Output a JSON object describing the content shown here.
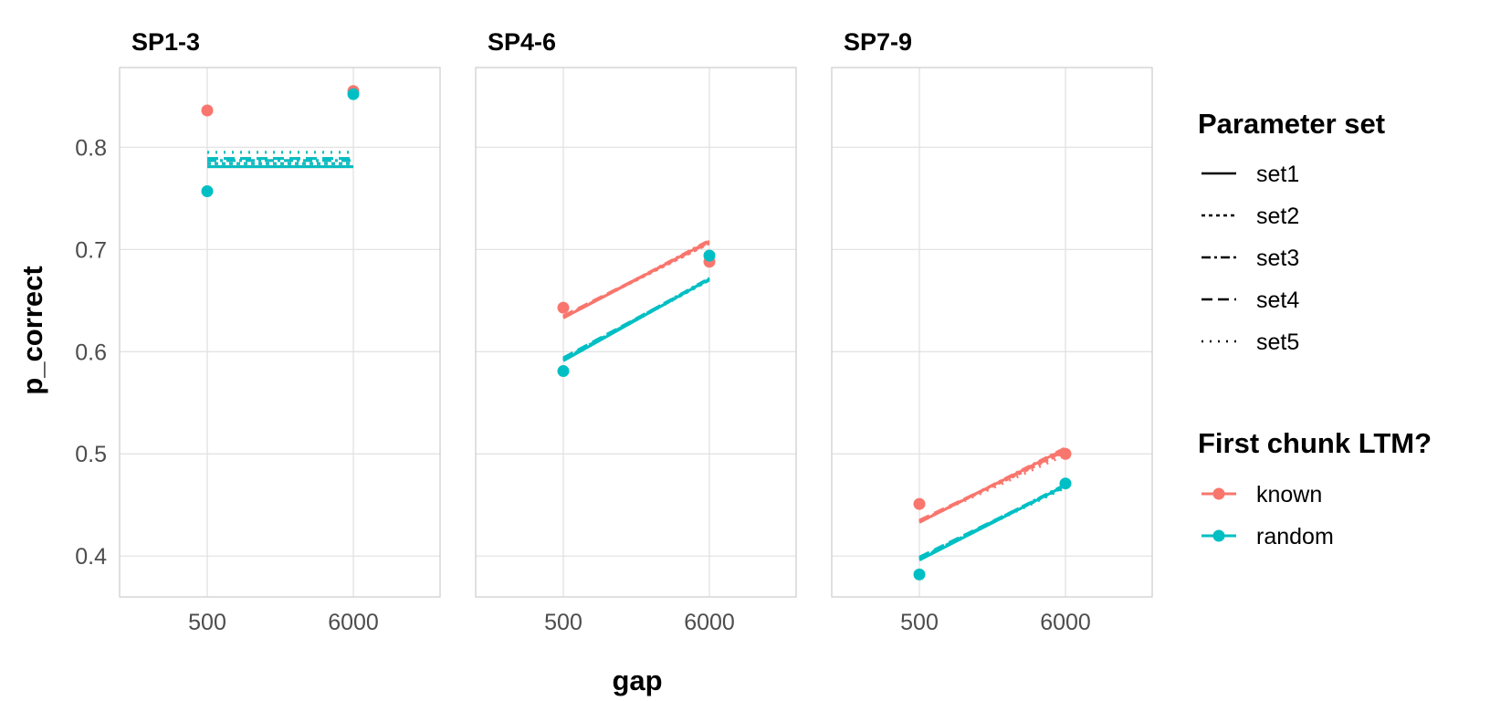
{
  "chart_data": {
    "type": "line",
    "xlabel": "gap",
    "ylabel": "p_correct",
    "x_categories": [
      "500",
      "6000"
    ],
    "ylim": [
      0.36,
      0.878
    ],
    "yticks": [
      0.4,
      0.5,
      0.6,
      0.7,
      0.8
    ],
    "ytick_labels": [
      "0.4",
      "0.5",
      "0.6",
      "0.7",
      "0.8"
    ],
    "grid": true,
    "legend_position": "right",
    "linetype_legend": {
      "title": "Parameter set",
      "items": [
        {
          "name": "set1",
          "dash": "solid"
        },
        {
          "name": "set2",
          "dash": "dotted-short"
        },
        {
          "name": "set3",
          "dash": "dashdot"
        },
        {
          "name": "set4",
          "dash": "dashed"
        },
        {
          "name": "set5",
          "dash": "dotted"
        }
      ]
    },
    "color_legend": {
      "title": "First chunk LTM?",
      "items": [
        {
          "name": "known",
          "color": "#F8766D"
        },
        {
          "name": "random",
          "color": "#00BFC4"
        }
      ]
    },
    "panels": [
      {
        "title": "SP1-3",
        "points": [
          {
            "group": "known",
            "values": [
              0.836,
              0.855
            ]
          },
          {
            "group": "random",
            "values": [
              0.757,
              0.852
            ]
          }
        ],
        "lines": [
          {
            "group": "known",
            "set": "set1",
            "values": [
              0.781,
              0.781
            ]
          },
          {
            "group": "known",
            "set": "set2",
            "values": [
              0.784,
              0.784
            ]
          },
          {
            "group": "known",
            "set": "set3",
            "values": [
              0.787,
              0.787
            ]
          },
          {
            "group": "known",
            "set": "set4",
            "values": [
              0.789,
              0.789
            ]
          },
          {
            "group": "known",
            "set": "set5",
            "values": [
              0.795,
              0.795
            ]
          },
          {
            "group": "random",
            "set": "set1",
            "values": [
              0.781,
              0.781
            ]
          },
          {
            "group": "random",
            "set": "set2",
            "values": [
              0.784,
              0.784
            ]
          },
          {
            "group": "random",
            "set": "set3",
            "values": [
              0.787,
              0.787
            ]
          },
          {
            "group": "random",
            "set": "set4",
            "values": [
              0.789,
              0.789
            ]
          },
          {
            "group": "random",
            "set": "set5",
            "values": [
              0.795,
              0.795
            ]
          }
        ]
      },
      {
        "title": "SP4-6",
        "points": [
          {
            "group": "known",
            "values": [
              0.643,
              0.688
            ]
          },
          {
            "group": "random",
            "values": [
              0.581,
              0.694
            ]
          }
        ],
        "lines": [
          {
            "group": "known",
            "set": "set1",
            "values": [
              0.633,
              0.708
            ]
          },
          {
            "group": "known",
            "set": "set2",
            "values": [
              0.634,
              0.706
            ]
          },
          {
            "group": "known",
            "set": "set3",
            "values": [
              0.633,
              0.709
            ]
          },
          {
            "group": "known",
            "set": "set4",
            "values": [
              0.635,
              0.707
            ]
          },
          {
            "group": "known",
            "set": "set5",
            "values": [
              0.634,
              0.708
            ]
          },
          {
            "group": "random",
            "set": "set1",
            "values": [
              0.591,
              0.671
            ]
          },
          {
            "group": "random",
            "set": "set2",
            "values": [
              0.593,
              0.67
            ]
          },
          {
            "group": "random",
            "set": "set3",
            "values": [
              0.592,
              0.672
            ]
          },
          {
            "group": "random",
            "set": "set4",
            "values": [
              0.594,
              0.671
            ]
          },
          {
            "group": "random",
            "set": "set5",
            "values": [
              0.592,
              0.67
            ]
          }
        ]
      },
      {
        "title": "SP7-9",
        "points": [
          {
            "group": "known",
            "values": [
              0.451,
              0.5
            ]
          },
          {
            "group": "random",
            "values": [
              0.382,
              0.471
            ]
          }
        ],
        "lines": [
          {
            "group": "known",
            "set": "set1",
            "values": [
              0.433,
              0.505
            ]
          },
          {
            "group": "known",
            "set": "set2",
            "values": [
              0.434,
              0.502
            ]
          },
          {
            "group": "known",
            "set": "set3",
            "values": [
              0.433,
              0.506
            ]
          },
          {
            "group": "known",
            "set": "set4",
            "values": [
              0.435,
              0.503
            ]
          },
          {
            "group": "known",
            "set": "set5",
            "values": [
              0.434,
              0.499
            ]
          },
          {
            "group": "random",
            "set": "set1",
            "values": [
              0.396,
              0.469
            ]
          },
          {
            "group": "random",
            "set": "set2",
            "values": [
              0.398,
              0.468
            ]
          },
          {
            "group": "random",
            "set": "set3",
            "values": [
              0.397,
              0.47
            ]
          },
          {
            "group": "random",
            "set": "set4",
            "values": [
              0.399,
              0.469
            ]
          },
          {
            "group": "random",
            "set": "set5",
            "values": [
              0.398,
              0.467
            ]
          }
        ]
      }
    ]
  }
}
